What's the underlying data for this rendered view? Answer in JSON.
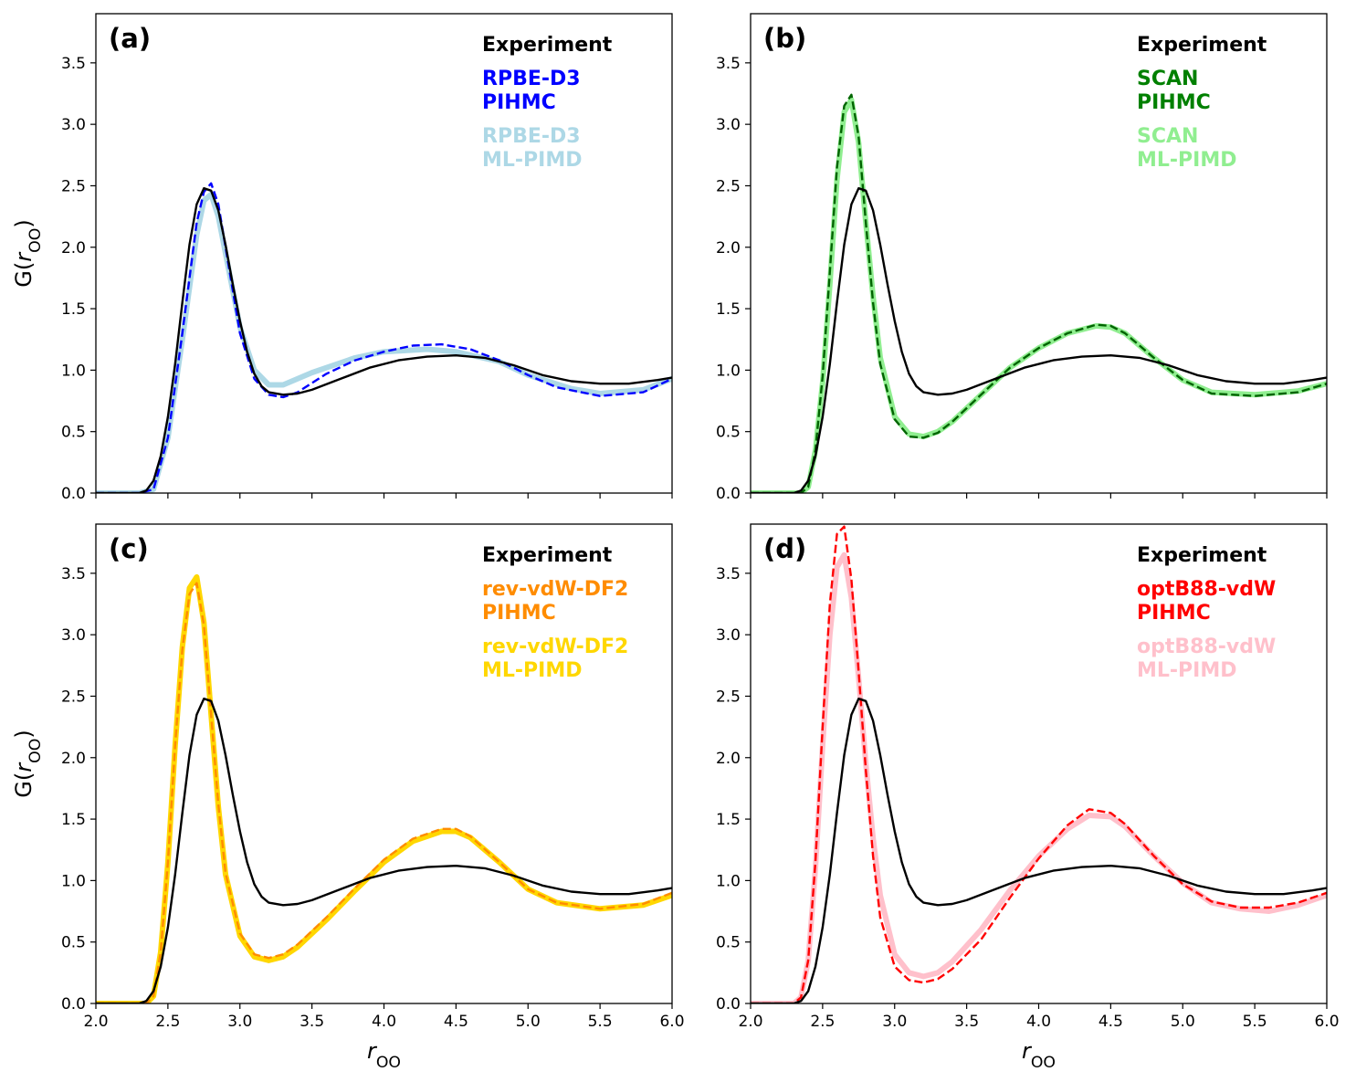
{
  "chart_data": [
    {
      "type": "line",
      "panel_label": "(a)",
      "xlabel": "",
      "ylabel": "G(r_OO)",
      "xlim": [
        2.0,
        6.0
      ],
      "ylim": [
        0.0,
        3.9
      ],
      "xticks": [],
      "yticks": [
        "0.0",
        "0.5",
        "1.0",
        "1.5",
        "2.0",
        "2.5",
        "3.0",
        "3.5"
      ],
      "legend": [
        {
          "text": [
            "Experiment"
          ],
          "color": "#000000"
        },
        {
          "text": [
            "RPBE-D3",
            "PIHMC"
          ],
          "color": "#0000ff"
        },
        {
          "text": [
            "RPBE-D3",
            "ML-PIMD"
          ],
          "color": "#add8e6"
        }
      ],
      "series": [
        {
          "name": "RPBE-D3 ML-PIMD",
          "color": "#add8e6",
          "style": "thick",
          "x": [
            2.0,
            2.3,
            2.4,
            2.5,
            2.6,
            2.7,
            2.75,
            2.8,
            2.85,
            2.9,
            3.0,
            3.1,
            3.2,
            3.3,
            3.5,
            3.8,
            4.0,
            4.3,
            4.5,
            4.8,
            5.0,
            5.3,
            5.5,
            5.8,
            6.0
          ],
          "y": [
            0.0,
            0.0,
            0.03,
            0.45,
            1.25,
            2.1,
            2.38,
            2.43,
            2.25,
            1.95,
            1.35,
            1.0,
            0.88,
            0.88,
            0.98,
            1.1,
            1.15,
            1.17,
            1.15,
            1.07,
            0.96,
            0.85,
            0.81,
            0.84,
            0.93
          ]
        },
        {
          "name": "RPBE-D3 PIHMC",
          "color": "#0000ff",
          "style": "dashed",
          "x": [
            2.0,
            2.3,
            2.4,
            2.5,
            2.6,
            2.7,
            2.75,
            2.8,
            2.85,
            2.9,
            3.0,
            3.1,
            3.2,
            3.3,
            3.4,
            3.6,
            3.8,
            4.0,
            4.2,
            4.4,
            4.6,
            4.8,
            5.0,
            5.2,
            5.5,
            5.8,
            6.0
          ],
          "y": [
            0.0,
            0.0,
            0.03,
            0.45,
            1.3,
            2.2,
            2.45,
            2.52,
            2.35,
            2.0,
            1.3,
            0.93,
            0.8,
            0.78,
            0.82,
            0.97,
            1.08,
            1.15,
            1.2,
            1.21,
            1.17,
            1.08,
            0.96,
            0.86,
            0.79,
            0.82,
            0.93
          ]
        },
        {
          "name": "Experiment",
          "color": "#000000",
          "style": "solid",
          "x": [
            2.0,
            2.3,
            2.35,
            2.4,
            2.45,
            2.5,
            2.55,
            2.6,
            2.65,
            2.7,
            2.75,
            2.8,
            2.85,
            2.9,
            2.95,
            3.0,
            3.05,
            3.1,
            3.15,
            3.2,
            3.3,
            3.4,
            3.5,
            3.7,
            3.9,
            4.1,
            4.3,
            4.5,
            4.7,
            4.9,
            5.1,
            5.3,
            5.5,
            5.7,
            5.9,
            6.0
          ],
          "y": [
            0.0,
            0.0,
            0.02,
            0.1,
            0.3,
            0.62,
            1.05,
            1.55,
            2.02,
            2.35,
            2.48,
            2.46,
            2.3,
            2.02,
            1.7,
            1.4,
            1.15,
            0.97,
            0.87,
            0.82,
            0.8,
            0.81,
            0.84,
            0.93,
            1.02,
            1.08,
            1.11,
            1.12,
            1.1,
            1.04,
            0.96,
            0.91,
            0.89,
            0.89,
            0.92,
            0.94
          ]
        }
      ]
    },
    {
      "type": "line",
      "panel_label": "(b)",
      "xlabel": "",
      "ylabel": "",
      "xlim": [
        2.0,
        6.0
      ],
      "ylim": [
        0.0,
        3.9
      ],
      "xticks": [],
      "yticks": [
        "0.0",
        "0.5",
        "1.0",
        "1.5",
        "2.0",
        "2.5",
        "3.0",
        "3.5"
      ],
      "legend": [
        {
          "text": [
            "Experiment"
          ],
          "color": "#000000"
        },
        {
          "text": [
            "SCAN",
            "PIHMC"
          ],
          "color": "#008000"
        },
        {
          "text": [
            "SCAN",
            "ML-PIMD"
          ],
          "color": "#90ee90"
        }
      ],
      "series": [
        {
          "name": "SCAN ML-PIMD",
          "color": "#90ee90",
          "style": "thick",
          "x": [
            2.0,
            2.35,
            2.4,
            2.45,
            2.5,
            2.55,
            2.6,
            2.65,
            2.7,
            2.75,
            2.8,
            2.85,
            2.9,
            3.0,
            3.1,
            3.2,
            3.3,
            3.4,
            3.6,
            3.8,
            4.0,
            4.2,
            4.4,
            4.5,
            4.6,
            4.8,
            5.0,
            5.2,
            5.5,
            5.8,
            6.0
          ],
          "y": [
            0.0,
            0.0,
            0.05,
            0.35,
            0.9,
            1.7,
            2.55,
            3.1,
            3.2,
            2.85,
            2.2,
            1.6,
            1.1,
            0.62,
            0.48,
            0.46,
            0.5,
            0.58,
            0.8,
            1.02,
            1.18,
            1.3,
            1.36,
            1.35,
            1.3,
            1.1,
            0.92,
            0.82,
            0.8,
            0.83,
            0.89
          ]
        },
        {
          "name": "SCAN PIHMC",
          "color": "#006400",
          "style": "dashed",
          "x": [
            2.0,
            2.35,
            2.4,
            2.45,
            2.5,
            2.55,
            2.6,
            2.65,
            2.7,
            2.75,
            2.8,
            2.85,
            2.9,
            3.0,
            3.1,
            3.2,
            3.3,
            3.4,
            3.6,
            3.8,
            4.0,
            4.2,
            4.4,
            4.5,
            4.6,
            4.8,
            5.0,
            5.2,
            5.5,
            5.8,
            6.0
          ],
          "y": [
            0.0,
            0.0,
            0.05,
            0.35,
            0.95,
            1.8,
            2.65,
            3.15,
            3.24,
            2.9,
            2.2,
            1.55,
            1.05,
            0.6,
            0.46,
            0.45,
            0.49,
            0.58,
            0.8,
            1.02,
            1.18,
            1.3,
            1.37,
            1.36,
            1.3,
            1.1,
            0.92,
            0.81,
            0.79,
            0.82,
            0.89
          ]
        },
        {
          "name": "Experiment",
          "color": "#000000",
          "style": "solid",
          "x": [
            2.0,
            2.3,
            2.35,
            2.4,
            2.45,
            2.5,
            2.55,
            2.6,
            2.65,
            2.7,
            2.75,
            2.8,
            2.85,
            2.9,
            2.95,
            3.0,
            3.05,
            3.1,
            3.15,
            3.2,
            3.3,
            3.4,
            3.5,
            3.7,
            3.9,
            4.1,
            4.3,
            4.5,
            4.7,
            4.9,
            5.1,
            5.3,
            5.5,
            5.7,
            5.9,
            6.0
          ],
          "y": [
            0.0,
            0.0,
            0.02,
            0.1,
            0.3,
            0.62,
            1.05,
            1.55,
            2.02,
            2.35,
            2.48,
            2.46,
            2.3,
            2.02,
            1.7,
            1.4,
            1.15,
            0.97,
            0.87,
            0.82,
            0.8,
            0.81,
            0.84,
            0.93,
            1.02,
            1.08,
            1.11,
            1.12,
            1.1,
            1.04,
            0.96,
            0.91,
            0.89,
            0.89,
            0.92,
            0.94
          ]
        }
      ]
    },
    {
      "type": "line",
      "panel_label": "(c)",
      "xlabel": "r_OO",
      "ylabel": "G(r_OO)",
      "xlim": [
        2.0,
        6.0
      ],
      "ylim": [
        0.0,
        3.9
      ],
      "xticks": [
        "2.0",
        "2.5",
        "3.0",
        "3.5",
        "4.0",
        "4.5",
        "5.0",
        "5.5",
        "6.0"
      ],
      "yticks": [
        "0.0",
        "0.5",
        "1.0",
        "1.5",
        "2.0",
        "2.5",
        "3.0",
        "3.5"
      ],
      "legend": [
        {
          "text": [
            "Experiment"
          ],
          "color": "#000000"
        },
        {
          "text": [
            "rev-vdW-DF2",
            "PIHMC"
          ],
          "color": "#ff8c00"
        },
        {
          "text": [
            "rev-vdW-DF2",
            "ML-PIMD"
          ],
          "color": "#ffd700"
        }
      ],
      "series": [
        {
          "name": "rev-vdW-DF2 ML-PIMD",
          "color": "#ffd700",
          "style": "thick",
          "x": [
            2.0,
            2.35,
            2.4,
            2.45,
            2.5,
            2.55,
            2.6,
            2.65,
            2.7,
            2.75,
            2.8,
            2.85,
            2.9,
            3.0,
            3.1,
            3.2,
            3.3,
            3.4,
            3.6,
            3.8,
            4.0,
            4.2,
            4.4,
            4.5,
            4.6,
            4.8,
            5.0,
            5.2,
            5.5,
            5.8,
            6.0
          ],
          "y": [
            0.0,
            0.0,
            0.06,
            0.42,
            1.15,
            2.1,
            2.9,
            3.38,
            3.47,
            3.1,
            2.35,
            1.6,
            1.05,
            0.55,
            0.38,
            0.35,
            0.38,
            0.46,
            0.68,
            0.92,
            1.15,
            1.32,
            1.4,
            1.4,
            1.35,
            1.15,
            0.93,
            0.82,
            0.77,
            0.8,
            0.88
          ]
        },
        {
          "name": "rev-vdW-DF2 PIHMC",
          "color": "#ff8c00",
          "style": "dashed",
          "x": [
            2.0,
            2.35,
            2.4,
            2.45,
            2.5,
            2.55,
            2.6,
            2.65,
            2.7,
            2.75,
            2.8,
            2.85,
            2.9,
            3.0,
            3.1,
            3.2,
            3.3,
            3.4,
            3.6,
            3.8,
            4.0,
            4.2,
            4.4,
            4.5,
            4.6,
            4.8,
            5.0,
            5.2,
            5.5,
            5.8,
            6.0
          ],
          "y": [
            0.0,
            0.0,
            0.06,
            0.42,
            1.15,
            2.1,
            2.88,
            3.33,
            3.42,
            3.08,
            2.35,
            1.62,
            1.06,
            0.57,
            0.4,
            0.37,
            0.4,
            0.48,
            0.7,
            0.94,
            1.17,
            1.34,
            1.42,
            1.42,
            1.36,
            1.15,
            0.93,
            0.82,
            0.77,
            0.81,
            0.9
          ]
        },
        {
          "name": "Experiment",
          "color": "#000000",
          "style": "solid",
          "x": [
            2.0,
            2.3,
            2.35,
            2.4,
            2.45,
            2.5,
            2.55,
            2.6,
            2.65,
            2.7,
            2.75,
            2.8,
            2.85,
            2.9,
            2.95,
            3.0,
            3.05,
            3.1,
            3.15,
            3.2,
            3.3,
            3.4,
            3.5,
            3.7,
            3.9,
            4.1,
            4.3,
            4.5,
            4.7,
            4.9,
            5.1,
            5.3,
            5.5,
            5.7,
            5.9,
            6.0
          ],
          "y": [
            0.0,
            0.0,
            0.02,
            0.1,
            0.3,
            0.62,
            1.05,
            1.55,
            2.02,
            2.35,
            2.48,
            2.46,
            2.3,
            2.02,
            1.7,
            1.4,
            1.15,
            0.97,
            0.87,
            0.82,
            0.8,
            0.81,
            0.84,
            0.93,
            1.02,
            1.08,
            1.11,
            1.12,
            1.1,
            1.04,
            0.96,
            0.91,
            0.89,
            0.89,
            0.92,
            0.94
          ]
        }
      ]
    },
    {
      "type": "line",
      "panel_label": "(d)",
      "xlabel": "r_OO",
      "ylabel": "",
      "xlim": [
        2.0,
        6.0
      ],
      "ylim": [
        0.0,
        3.9
      ],
      "xticks": [
        "2.0",
        "2.5",
        "3.0",
        "3.5",
        "4.0",
        "4.5",
        "5.0",
        "5.5",
        "6.0"
      ],
      "yticks": [
        "0.0",
        "0.5",
        "1.0",
        "1.5",
        "2.0",
        "2.5",
        "3.0",
        "3.5"
      ],
      "legend": [
        {
          "text": [
            "Experiment"
          ],
          "color": "#000000"
        },
        {
          "text": [
            "optB88-vdW",
            "PIHMC"
          ],
          "color": "#ff0000"
        },
        {
          "text": [
            "optB88-vdW",
            "ML-PIMD"
          ],
          "color": "#ffc0cb"
        }
      ],
      "series": [
        {
          "name": "optB88-vdW ML-PIMD",
          "color": "#ffc0cb",
          "style": "thick",
          "x": [
            2.0,
            2.3,
            2.35,
            2.4,
            2.45,
            2.5,
            2.55,
            2.6,
            2.65,
            2.7,
            2.75,
            2.8,
            2.85,
            2.9,
            3.0,
            3.1,
            3.2,
            3.3,
            3.4,
            3.6,
            3.8,
            4.0,
            4.2,
            4.35,
            4.5,
            4.6,
            4.8,
            5.0,
            5.2,
            5.4,
            5.6,
            5.8,
            6.0
          ],
          "y": [
            0.0,
            0.0,
            0.05,
            0.35,
            1.1,
            2.1,
            3.0,
            3.55,
            3.65,
            3.3,
            2.65,
            1.95,
            1.35,
            0.88,
            0.4,
            0.25,
            0.22,
            0.25,
            0.34,
            0.6,
            0.92,
            1.2,
            1.42,
            1.53,
            1.52,
            1.44,
            1.2,
            0.98,
            0.82,
            0.77,
            0.75,
            0.8,
            0.88
          ]
        },
        {
          "name": "optB88-vdW PIHMC",
          "color": "#ff0000",
          "style": "dashed",
          "x": [
            2.0,
            2.3,
            2.35,
            2.4,
            2.45,
            2.5,
            2.55,
            2.6,
            2.65,
            2.7,
            2.75,
            2.8,
            2.85,
            2.9,
            3.0,
            3.1,
            3.2,
            3.3,
            3.4,
            3.6,
            3.8,
            4.0,
            4.2,
            4.35,
            4.5,
            4.6,
            4.8,
            5.0,
            5.2,
            5.4,
            5.6,
            5.8,
            6.0
          ],
          "y": [
            0.0,
            0.0,
            0.05,
            0.35,
            1.15,
            2.25,
            3.25,
            3.82,
            3.88,
            3.45,
            2.7,
            1.9,
            1.2,
            0.7,
            0.3,
            0.19,
            0.17,
            0.2,
            0.28,
            0.52,
            0.86,
            1.18,
            1.45,
            1.58,
            1.55,
            1.46,
            1.2,
            0.97,
            0.83,
            0.78,
            0.78,
            0.82,
            0.9
          ]
        },
        {
          "name": "Experiment",
          "color": "#000000",
          "style": "solid",
          "x": [
            2.0,
            2.3,
            2.35,
            2.4,
            2.45,
            2.5,
            2.55,
            2.6,
            2.65,
            2.7,
            2.75,
            2.8,
            2.85,
            2.9,
            2.95,
            3.0,
            3.05,
            3.1,
            3.15,
            3.2,
            3.3,
            3.4,
            3.5,
            3.7,
            3.9,
            4.1,
            4.3,
            4.5,
            4.7,
            4.9,
            5.1,
            5.3,
            5.5,
            5.7,
            5.9,
            6.0
          ],
          "y": [
            0.0,
            0.0,
            0.02,
            0.1,
            0.3,
            0.62,
            1.05,
            1.55,
            2.02,
            2.35,
            2.48,
            2.46,
            2.3,
            2.02,
            1.7,
            1.4,
            1.15,
            0.97,
            0.87,
            0.82,
            0.8,
            0.81,
            0.84,
            0.93,
            1.02,
            1.08,
            1.11,
            1.12,
            1.1,
            1.04,
            0.96,
            0.91,
            0.89,
            0.89,
            0.92,
            0.94
          ]
        }
      ]
    }
  ]
}
